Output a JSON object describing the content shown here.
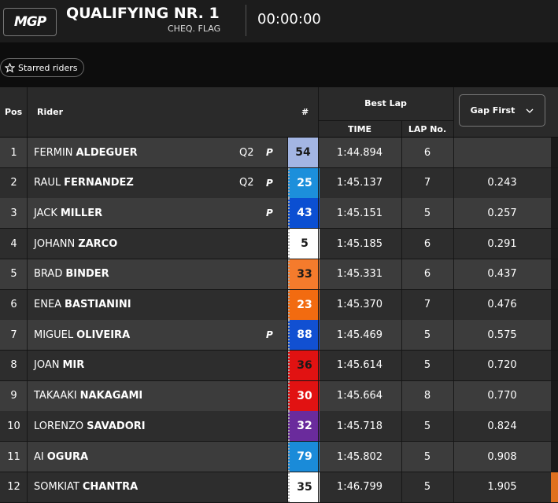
{
  "header": {
    "logo": "MGP",
    "title": "QUALIFYING NR. 1",
    "status": "CHEQ. FLAG",
    "timer": "00:00:00"
  },
  "filter_button": "Starred riders",
  "table": {
    "columns": {
      "pos": "Pos",
      "rider": "Rider",
      "number": "#",
      "best_lap": "Best Lap",
      "time": "TIME",
      "lap": "LAP No.",
      "gap": "Gap First"
    },
    "rows": [
      {
        "pos": "1",
        "first": "FERMIN",
        "last": "ALDEGUER",
        "session": "Q2",
        "pit": "P",
        "number": "54",
        "number_bg": "#a3b5e3",
        "number_fg": "#1a1a1a",
        "time": "1:44.894",
        "lap": "6"
      },
      {
        "pos": "2",
        "first": "RAUL",
        "last": "FERNANDEZ",
        "session": "Q2",
        "pit": "P",
        "number": "25",
        "number_bg": "#1c8fdb",
        "number_fg": "#ffffff",
        "time": "1:45.137",
        "lap": "7",
        "gap": "0.243"
      },
      {
        "pos": "3",
        "first": "JACK",
        "last": "MILLER",
        "pit": "P",
        "number": "43",
        "number_bg": "#0b4fd2",
        "number_fg": "#ffffff",
        "time": "1:45.151",
        "lap": "5",
        "gap": "0.257"
      },
      {
        "pos": "4",
        "first": "JOHANN",
        "last": "ZARCO",
        "number": "5",
        "number_bg": "#ffffff",
        "number_fg": "#1a1a1a",
        "time": "1:45.185",
        "lap": "6",
        "gap": "0.291"
      },
      {
        "pos": "5",
        "first": "BRAD",
        "last": "BINDER",
        "number": "33",
        "number_bg": "#f57b2c",
        "number_fg": "#1a1a1a",
        "time": "1:45.331",
        "lap": "6",
        "gap": "0.437"
      },
      {
        "pos": "6",
        "first": "ENEA",
        "last": "BASTIANINI",
        "number": "23",
        "number_bg": "#f26b10",
        "number_fg": "#ffffff",
        "time": "1:45.370",
        "lap": "7",
        "gap": "0.476"
      },
      {
        "pos": "7",
        "first": "MIGUEL",
        "last": "OLIVEIRA",
        "pit": "P",
        "number": "88",
        "number_bg": "#1150d2",
        "number_fg": "#ffffff",
        "time": "1:45.469",
        "lap": "5",
        "gap": "0.575"
      },
      {
        "pos": "8",
        "first": "JOAN",
        "last": "MIR",
        "number": "36",
        "number_bg": "#e11212",
        "number_fg": "#1a1a1a",
        "time": "1:45.614",
        "lap": "5",
        "gap": "0.720"
      },
      {
        "pos": "9",
        "first": "TAKAAKI",
        "last": "NAKAGAMI",
        "number": "30",
        "number_bg": "#e11212",
        "number_fg": "#ffffff",
        "time": "1:45.664",
        "lap": "8",
        "gap": "0.770"
      },
      {
        "pos": "10",
        "first": "LORENZO",
        "last": "SAVADORI",
        "number": "32",
        "number_bg": "#6a2b9c",
        "number_fg": "#ffffff",
        "time": "1:45.718",
        "lap": "5",
        "gap": "0.824"
      },
      {
        "pos": "11",
        "first": "AI",
        "last": "OGURA",
        "number": "79",
        "number_bg": "#1a8bd9",
        "number_fg": "#ffffff",
        "time": "1:45.802",
        "lap": "5",
        "gap": "0.908"
      },
      {
        "pos": "12",
        "first": "SOMKIAT",
        "last": "CHANTRA",
        "number": "35",
        "number_bg": "#ffffff",
        "number_fg": "#1a1a1a",
        "time": "1:46.799",
        "lap": "5",
        "gap": "1.905"
      }
    ]
  }
}
